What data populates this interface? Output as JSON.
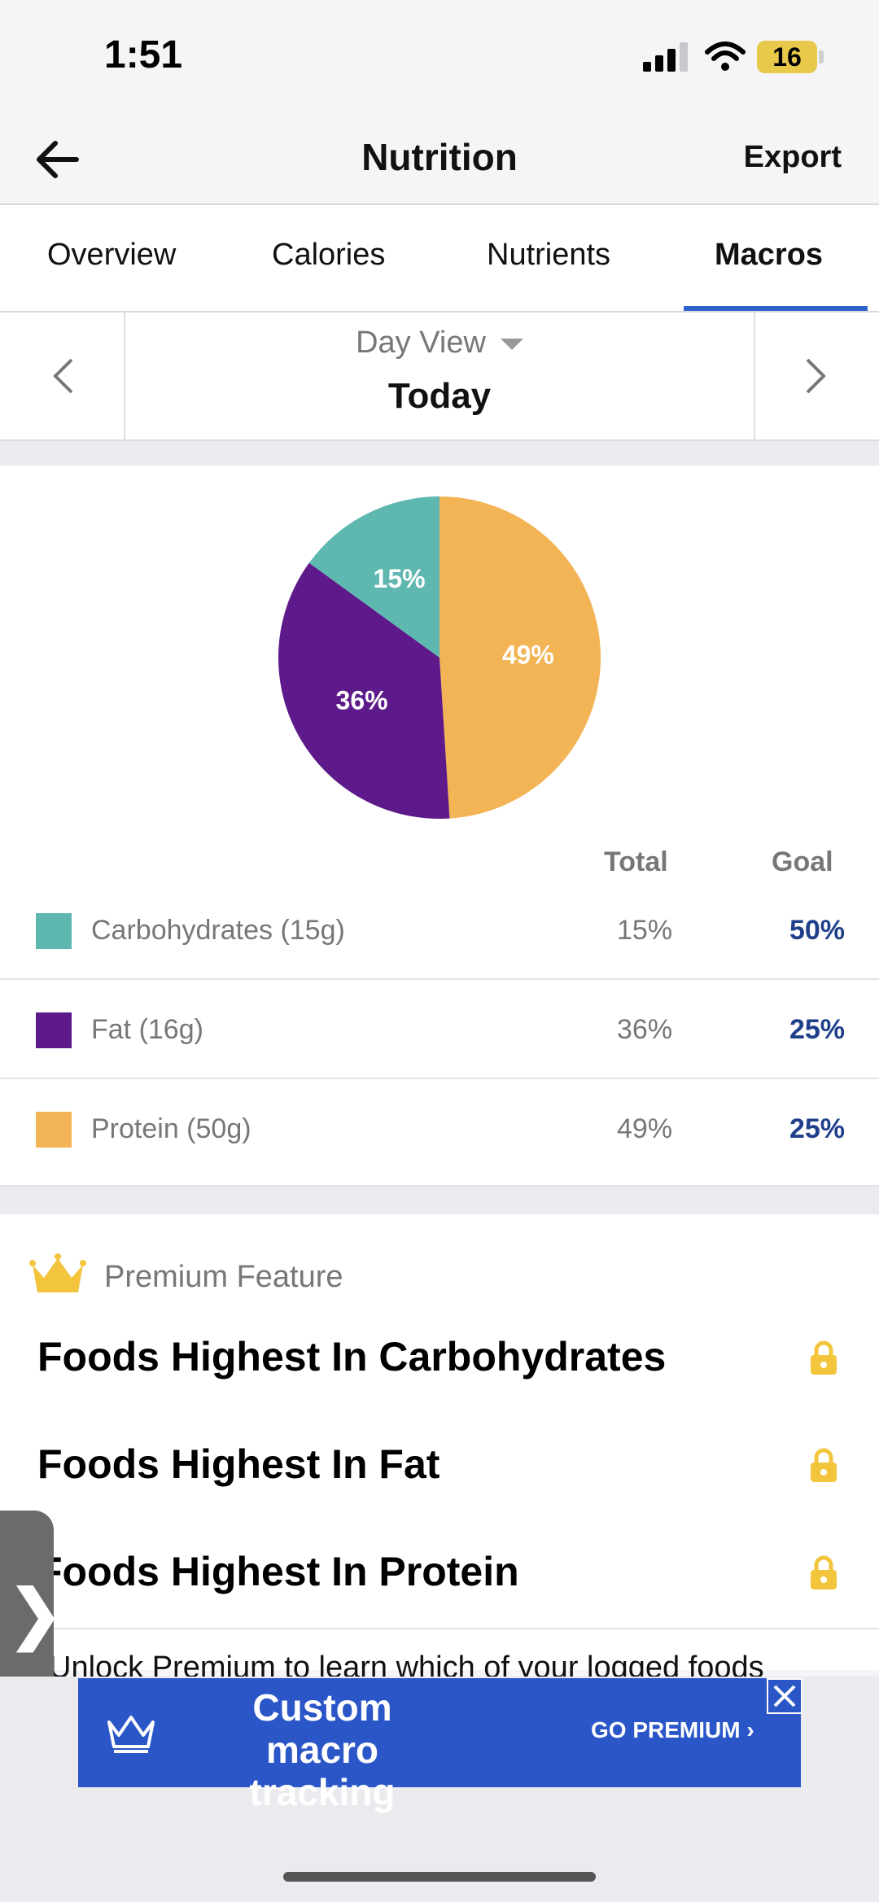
{
  "status_bar": {
    "time": "1:51",
    "battery": "16"
  },
  "nav": {
    "title": "Nutrition",
    "export_label": "Export",
    "back_icon": "arrow-left-icon"
  },
  "tabs": [
    {
      "label": "Overview",
      "active": false
    },
    {
      "label": "Calories",
      "active": false
    },
    {
      "label": "Nutrients",
      "active": false
    },
    {
      "label": "Macros",
      "active": true
    }
  ],
  "day_selector": {
    "view_label": "Day View",
    "period": "Today"
  },
  "macro_table": {
    "total_header": "Total",
    "goal_header": "Goal",
    "rows": [
      {
        "label": "Carbohydrates (15g)",
        "total": "15%",
        "goal": "50%",
        "color": "#5fb8b0"
      },
      {
        "label": "Fat (16g)",
        "total": "36%",
        "goal": "25%",
        "color": "#5e1a8a"
      },
      {
        "label": "Protein (50g)",
        "total": "49%",
        "goal": "25%",
        "color": "#f2b455"
      }
    ]
  },
  "chart_data": {
    "type": "pie",
    "slices": [
      {
        "label": "Protein",
        "value": 49,
        "text": "49%",
        "color": "#f2b455"
      },
      {
        "label": "Fat",
        "value": 36,
        "text": "36%",
        "color": "#5e1a8a"
      },
      {
        "label": "Carbohydrates",
        "value": 15,
        "text": "15%",
        "color": "#5fb8b0"
      }
    ]
  },
  "premium": {
    "label": "Premium Feature",
    "items": [
      "Foods Highest In Carbohydrates",
      "Foods Highest In Fat",
      "Foods Highest In Protein"
    ],
    "unlock_text": "Unlock Premium to learn which of your logged foods"
  },
  "ad": {
    "headline": "Custom macro tracking",
    "cta": "GO PREMIUM",
    "accent": "#2a56c8"
  },
  "colors": {
    "tab_underline": "#2e63c9",
    "goal_text": "#1f3f8a",
    "crown": "#f2c53d"
  }
}
